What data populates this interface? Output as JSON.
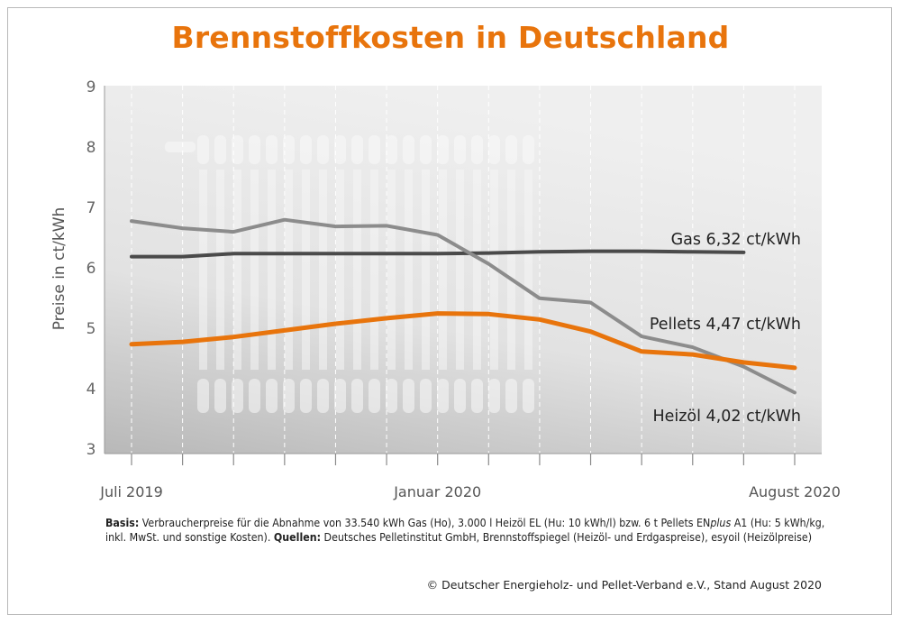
{
  "chart_data": {
    "type": "line",
    "title": "Brennstoffkosten in Deutschland",
    "ylabel": "Preise in ct/kWh",
    "xlabel": "",
    "ylim": [
      3,
      9
    ],
    "yticks": [
      "3",
      "4",
      "5",
      "6",
      "7",
      "8",
      "9"
    ],
    "x": [
      "2019-07",
      "2019-08",
      "2019-09",
      "2019-10",
      "2019-11",
      "2019-12",
      "2020-01",
      "2020-02",
      "2020-03",
      "2020-04",
      "2020-05",
      "2020-06",
      "2020-07",
      "2020-08"
    ],
    "xtick_labels": [
      {
        "at": "2019-07",
        "label": "Juli 2019"
      },
      {
        "at": "2020-01",
        "label": "Januar 2020"
      },
      {
        "at": "2020-08",
        "label": "August 2020"
      }
    ],
    "grid": "vertical dashed",
    "series": [
      {
        "name": "Gas",
        "label": "Gas  6,32 ct/kWh",
        "color": "#4a4a4a",
        "values": [
          6.17,
          6.17,
          6.22,
          6.22,
          6.22,
          6.22,
          6.22,
          6.23,
          6.25,
          6.26,
          6.26,
          6.25,
          6.24,
          null
        ]
      },
      {
        "name": "Heizöl",
        "label": "Heizöl  4,02 ct/kWh",
        "color": "#8c8c8c",
        "values": [
          6.76,
          6.64,
          6.58,
          6.78,
          6.67,
          6.68,
          6.53,
          6.05,
          5.48,
          5.41,
          4.85,
          4.67,
          4.35,
          3.92
        ]
      },
      {
        "name": "Pellets",
        "label": "Pellets  4,47 ct/kWh",
        "color": "#e8740c",
        "values": [
          4.72,
          4.76,
          4.84,
          4.95,
          5.06,
          5.15,
          5.23,
          5.22,
          5.13,
          4.93,
          4.6,
          4.55,
          4.42,
          4.33
        ]
      }
    ]
  },
  "footnote": {
    "basis_label": "Basis:",
    "basis_text": " Verbraucherpreise für die Abnahme von 33.540 kWh Gas (Ho), 3.000 l Heizöl EL (Hu: 10 kWh/l) bzw. 6 t Pellets EN",
    "plus": "plus",
    "basis_text2": " A1 (Hu: 5 kWh/kg, inkl. MwSt. und sonstige Kosten). ",
    "sources_label": "Quellen:",
    "sources_text": " Deutsches Pelletinstitut GmbH, Brennstoffspiegel (Heizöl- und Erdgaspreise), esyoil (Heizölpreise)"
  },
  "copyright": "© Deutscher Energieholz- und Pellet-Verband e.V., Stand August 2020",
  "colors": {
    "title": "#e8740c",
    "plot_background_light": "#ececec",
    "plot_background_dark": "#bdbdbd"
  }
}
